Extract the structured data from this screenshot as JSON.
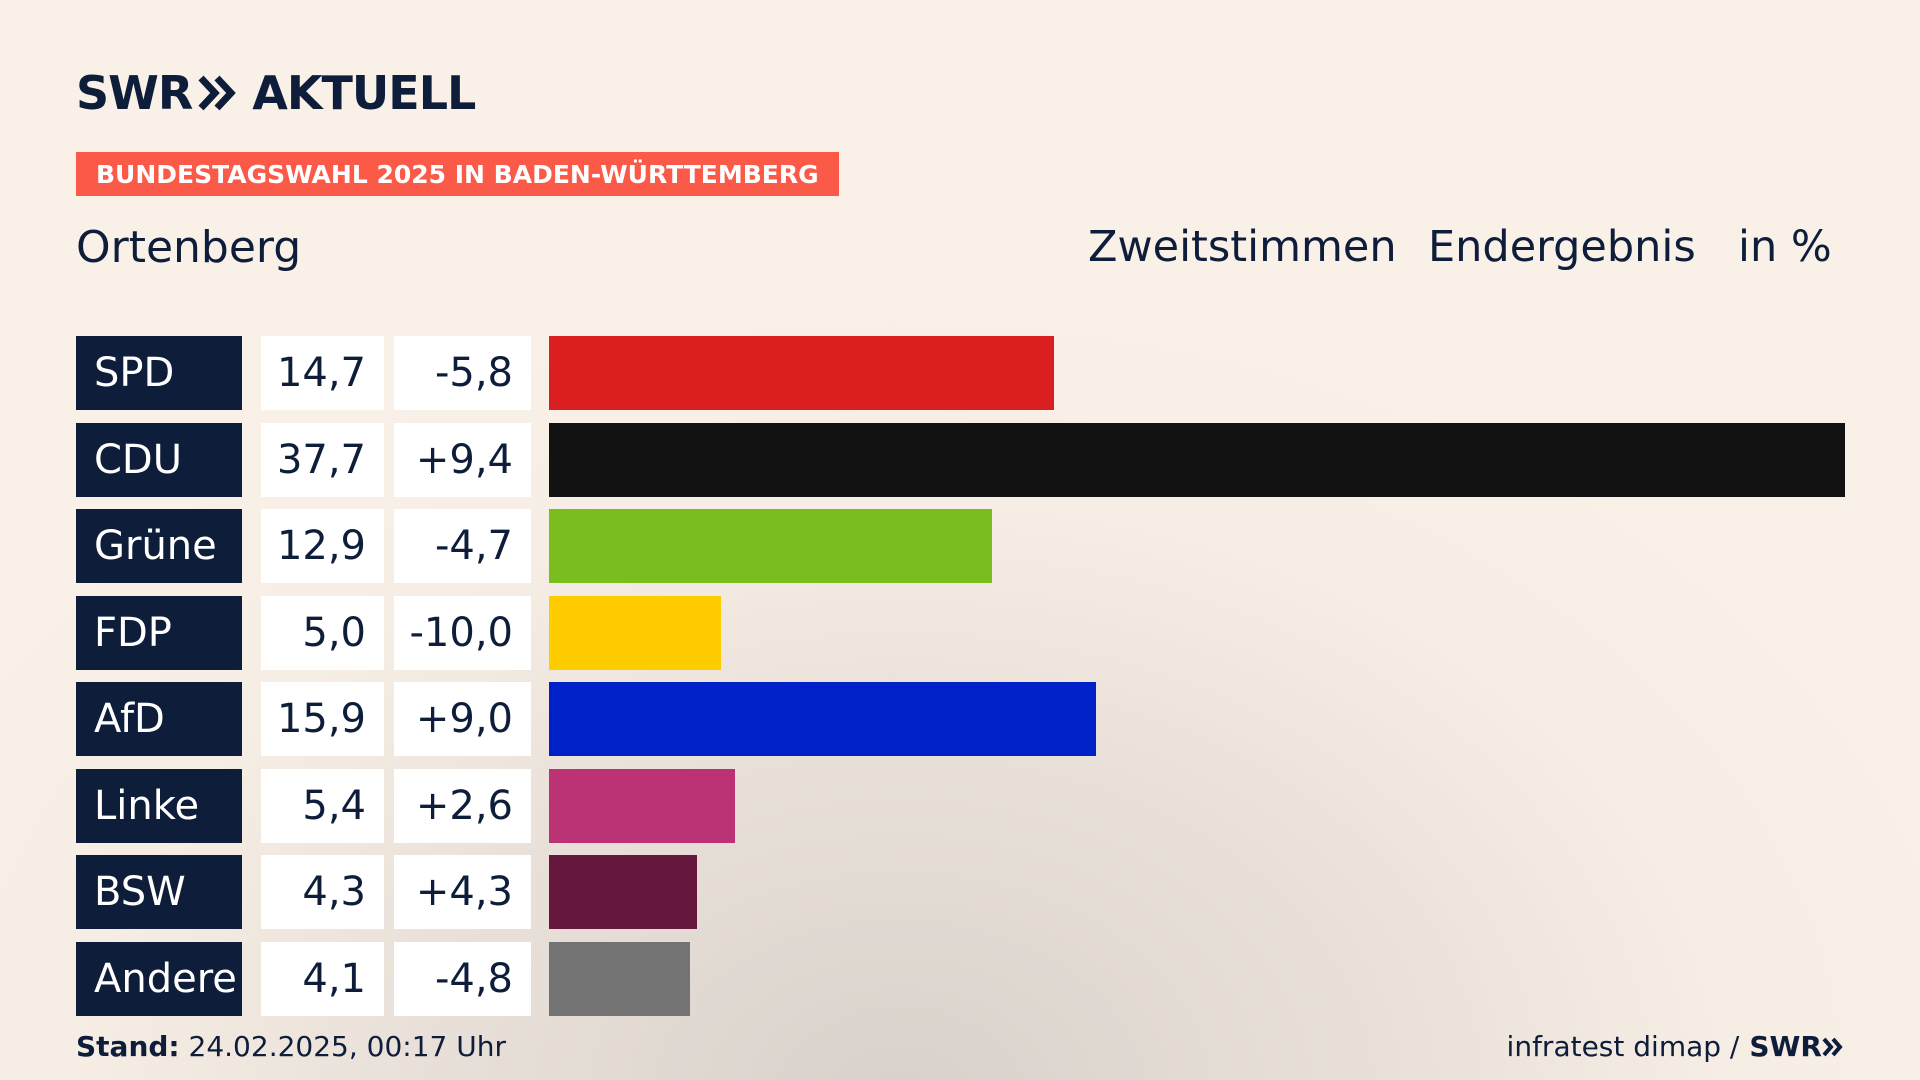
{
  "brand": {
    "logo_left": "SWR",
    "logo_right": "AKTUELL",
    "logo_sep_icon": "double-chevron-icon"
  },
  "banner": "BUNDESTAGSWAHL 2025 IN BADEN-WÜRTTEMBERG",
  "region": "Ortenberg",
  "header": {
    "vote_type": "Zweitstimmen",
    "status": "Endergebnis",
    "unit": "in %"
  },
  "chart_data": {
    "type": "bar",
    "orientation": "horizontal",
    "xlim": [
      0,
      37.7
    ],
    "categories": [
      "SPD",
      "CDU",
      "Grüne",
      "FDP",
      "AfD",
      "Linke",
      "BSW",
      "Andere"
    ],
    "values": [
      14.7,
      37.7,
      12.9,
      5.0,
      15.9,
      5.4,
      4.3,
      4.1
    ],
    "values_text": [
      "14,7",
      "37,7",
      "12,9",
      "5,0",
      "15,9",
      "5,4",
      "4,3",
      "4,1"
    ],
    "changes": [
      -5.8,
      9.4,
      -4.7,
      -10.0,
      9.0,
      2.6,
      4.3,
      -4.8
    ],
    "changes_text": [
      "-5,8",
      "+9,4",
      "-4,7",
      "-10,0",
      "+9,0",
      "+2,6",
      "+4,3",
      "-4,8"
    ],
    "colors": [
      "#d91f1f",
      "#121212",
      "#7abd1e",
      "#ffcc00",
      "#0021c8",
      "#bb3275",
      "#66173d",
      "#737373"
    ]
  },
  "footer": {
    "stand_label": "Stand:",
    "stand_value": "24.02.2025, 00:17 Uhr",
    "source": "infratest dimap /",
    "source_logo": "SWR"
  }
}
